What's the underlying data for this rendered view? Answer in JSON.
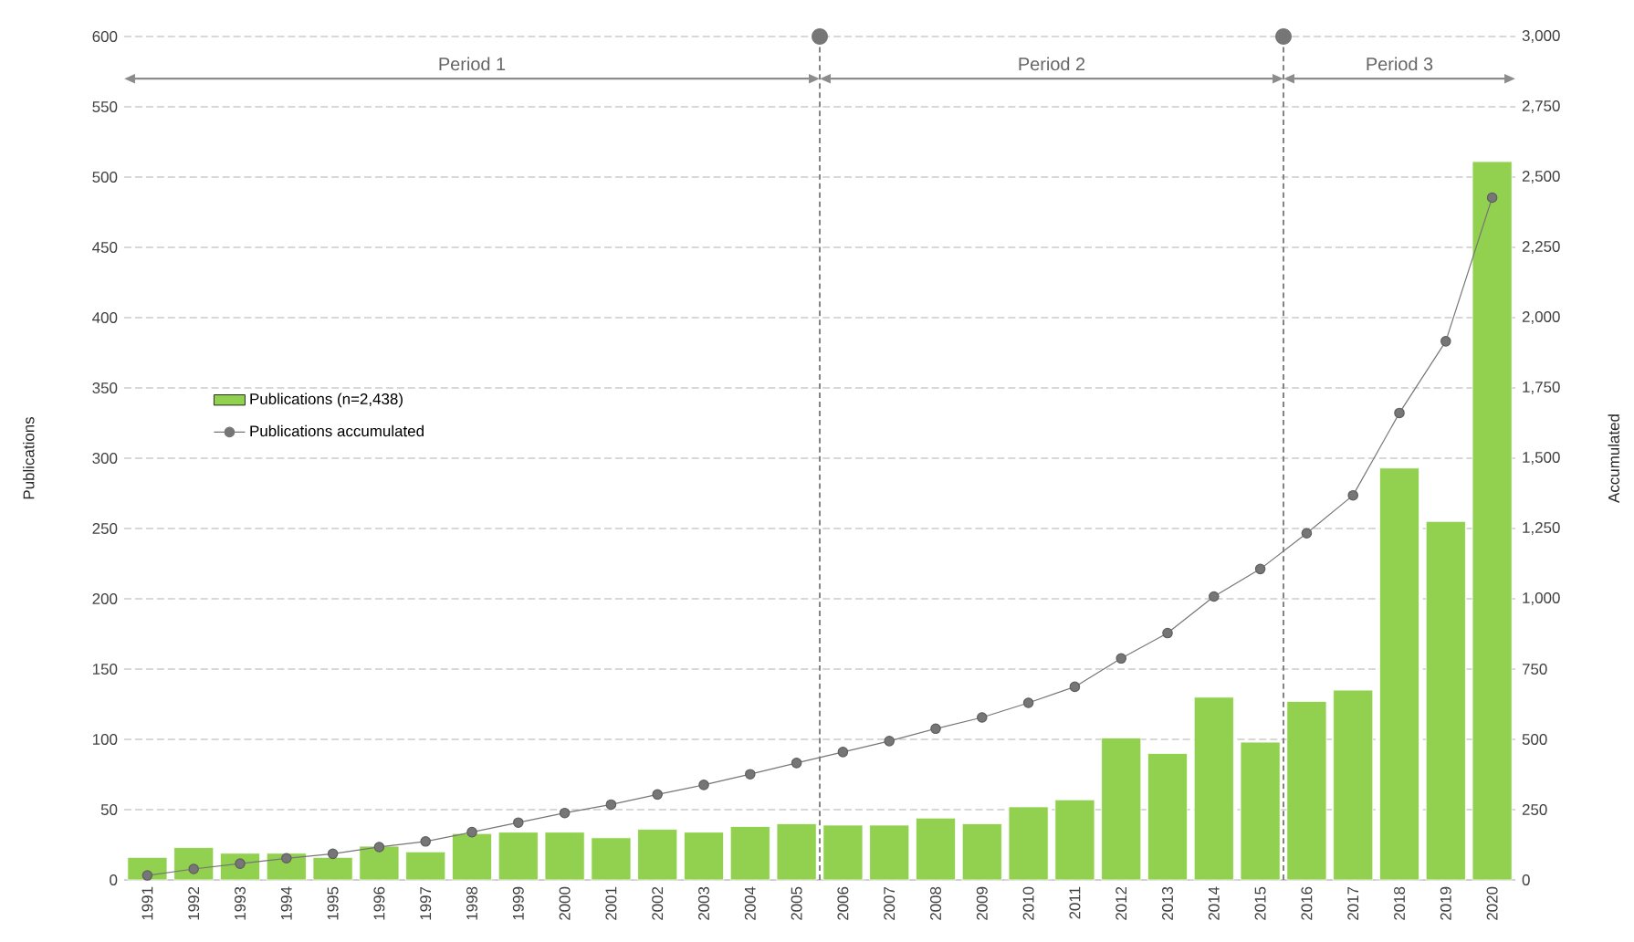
{
  "chart_data": {
    "type": "bar",
    "ylabel": "Publications",
    "y2label": "Accumulated",
    "x": [
      1991,
      1992,
      1993,
      1994,
      1995,
      1996,
      1997,
      1998,
      1999,
      2000,
      2001,
      2002,
      2003,
      2004,
      2005,
      2006,
      2007,
      2008,
      2009,
      2010,
      2011,
      2012,
      2013,
      2014,
      2015,
      2016,
      2017,
      2018,
      2019,
      2020
    ],
    "xlim": [
      1990.5,
      2020.5
    ],
    "xticks": [
      1991,
      1992,
      1993,
      1994,
      1995,
      1996,
      1997,
      1998,
      1999,
      2000,
      2001,
      2002,
      2003,
      2004,
      2005,
      2006,
      2007,
      2008,
      2009,
      2010,
      2011,
      2012,
      2013,
      2014,
      2015,
      2016,
      2017,
      2018,
      2019,
      2020
    ],
    "ylim": [
      0,
      600
    ],
    "yticks": [
      0,
      50,
      100,
      150,
      200,
      250,
      300,
      350,
      400,
      450,
      500,
      550,
      600
    ],
    "y2lim": [
      0,
      3000
    ],
    "y2ticks": [
      0,
      250,
      500,
      750,
      {
        "value": 1000,
        "label": "1,000"
      },
      {
        "value": 1250,
        "label": "1,250"
      },
      {
        "value": 1500,
        "label": "1,500"
      },
      {
        "value": 1750,
        "label": "1,750"
      },
      {
        "value": 2000,
        "label": "2,000"
      },
      {
        "value": 2250,
        "label": "2,250"
      },
      {
        "value": 2500,
        "label": "2,500"
      },
      {
        "value": 2750,
        "label": "2,750"
      },
      {
        "value": 3000,
        "label": "3,000"
      }
    ],
    "series": [
      {
        "name": "Publications (n=2,438)",
        "color": "#92d050",
        "values": [
          16,
          23,
          19,
          19,
          16,
          24,
          20,
          33,
          34,
          34,
          30,
          36,
          34,
          38,
          40,
          39,
          39,
          44,
          40,
          52,
          57,
          101,
          90,
          130,
          98,
          127,
          135,
          293,
          255,
          511
        ]
      },
      {
        "name": "Publications accumulated",
        "type": "line",
        "axis": "y2",
        "color": "#767676",
        "marker": "circle",
        "values": [
          16,
          39,
          58,
          77,
          93,
          117,
          137,
          170,
          204,
          238,
          268,
          304,
          338,
          376,
          416,
          455,
          494,
          538,
          578,
          630,
          687,
          788,
          878,
          1008,
          1106,
          1233,
          1368,
          1661,
          1916,
          2427
        ]
      }
    ],
    "ref_lines": [
      {
        "axis": "x",
        "value": 2005.5,
        "color": "#767676",
        "line_style": "dashed"
      },
      {
        "axis": "x",
        "value": 2015.5,
        "color": "#767676",
        "line_style": "dashed"
      }
    ],
    "annotations": [
      "Period 1",
      "Period 2",
      "Period 3"
    ],
    "grid": "y",
    "legend": "left"
  }
}
